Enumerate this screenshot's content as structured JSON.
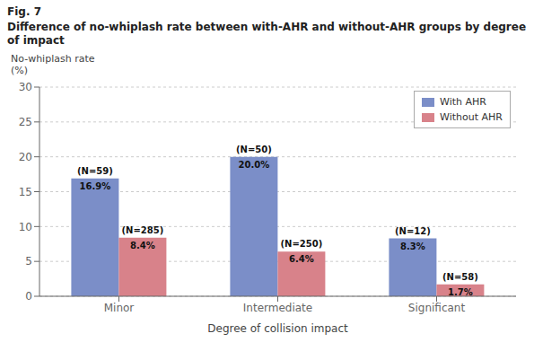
{
  "chart_data": {
    "type": "bar",
    "title": "Fig. 7",
    "subtitle": "Difference of no-whiplash rate between with-AHR and without-AHR groups by degree of impact",
    "ylabel": [
      "No-whiplash rate",
      "(%)"
    ],
    "xlabel": "Degree of collision impact",
    "categories": [
      "Minor",
      "Intermediate",
      "Significant"
    ],
    "series": [
      {
        "name": "With AHR",
        "color": "#7b8ec8",
        "values": [
          16.9,
          20.0,
          8.3
        ],
        "value_labels": [
          "16.9%",
          "20.0%",
          "8.3%"
        ],
        "annotations": [
          "(N=59)",
          "(N=50)",
          "(N=12)"
        ]
      },
      {
        "name": "Without AHR",
        "color": "#d8828a",
        "values": [
          8.4,
          6.4,
          1.7
        ],
        "value_labels": [
          "8.4%",
          "6.4%",
          "1.7%"
        ],
        "annotations": [
          "(N=285)",
          "(N=250)",
          "(N=58)"
        ]
      }
    ],
    "ylim": [
      0,
      30
    ],
    "yticks": [
      0,
      5,
      10,
      15,
      20,
      25,
      30
    ],
    "grid": true,
    "legend": "upper right",
    "data_labels": true
  }
}
